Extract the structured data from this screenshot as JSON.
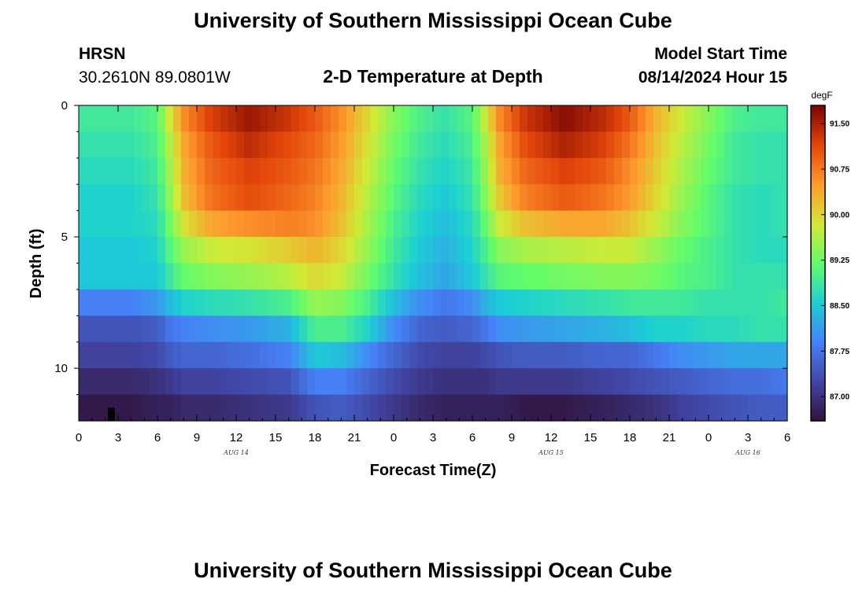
{
  "page": {
    "title_top": "University of Southern Mississippi Ocean Cube",
    "title_bottom": "University of Southern Mississippi Ocean Cube",
    "station_name": "HRSN",
    "station_coords": "30.2610N  89.0801W",
    "model_start_label": "Model Start Time",
    "model_start_value": "08/14/2024 Hour 15"
  },
  "chart_data": {
    "type": "heatmap",
    "title": "2-D Temperature at Depth",
    "xlabel": "Forecast Time(Z)",
    "ylabel": "Depth (ft)",
    "x_range_hours": [
      0,
      54
    ],
    "x_tick_labels": [
      "0",
      "3",
      "6",
      "9",
      "12",
      "15",
      "18",
      "21",
      "0",
      "3",
      "6",
      "9",
      "12",
      "15",
      "18",
      "21",
      "0",
      "3",
      "6"
    ],
    "date_labels": [
      {
        "label": "AUG 14",
        "hour": 12
      },
      {
        "label": "AUG 15",
        "hour": 36
      },
      {
        "label": "AUG 16",
        "hour": 51
      }
    ],
    "y_range_ft": [
      0,
      12
    ],
    "y_tick_labels": [
      "0",
      "5",
      "10"
    ],
    "y_tick_values": [
      0,
      5,
      10
    ],
    "colorbar": {
      "unit": "degF",
      "range": [
        86.6,
        91.8
      ],
      "tick_labels": [
        "91.50",
        "90.75",
        "90.00",
        "89.25",
        "88.50",
        "87.75",
        "87.00"
      ],
      "tick_values": [
        91.5,
        90.75,
        90.0,
        89.25,
        88.5,
        87.75,
        87.0
      ],
      "colors": [
        "#30123b",
        "#4146a4",
        "#4681f7",
        "#1bcfd4",
        "#62fc6b",
        "#d2e935",
        "#fe9b2d",
        "#e4460a",
        "#7a0403"
      ]
    },
    "depth_layers_ft": [
      0.5,
      1.5,
      2.5,
      3.5,
      4.5,
      5.5,
      6.5,
      7.5,
      8.5,
      9.5,
      10.5,
      11.5
    ],
    "profile_hours": [
      0,
      4,
      6,
      7,
      8,
      10,
      13,
      16,
      18,
      20,
      22,
      24,
      26,
      28,
      30,
      31,
      32,
      34,
      37,
      40,
      42,
      44,
      46,
      48,
      50,
      52,
      54
    ],
    "temperature_degF": [
      [
        88.9,
        88.9,
        89.1,
        89.9,
        90.6,
        91.2,
        91.6,
        91.3,
        91.0,
        90.6,
        90.0,
        89.4,
        89.0,
        88.8,
        89.1,
        89.8,
        90.6,
        91.3,
        91.7,
        91.4,
        91.0,
        90.3,
        89.8,
        89.4,
        89.0,
        88.9,
        88.9
      ],
      [
        88.8,
        88.8,
        89.0,
        89.7,
        90.4,
        91.0,
        91.4,
        91.1,
        90.9,
        90.5,
        89.9,
        89.3,
        88.9,
        88.7,
        89.0,
        89.6,
        90.4,
        91.1,
        91.5,
        91.2,
        90.8,
        90.2,
        89.7,
        89.3,
        88.9,
        88.8,
        88.8
      ],
      [
        88.7,
        88.7,
        88.9,
        89.6,
        90.3,
        90.9,
        91.2,
        91.0,
        90.8,
        90.4,
        89.8,
        89.2,
        88.8,
        88.6,
        88.9,
        89.5,
        90.3,
        90.9,
        91.2,
        91.0,
        90.6,
        90.1,
        89.6,
        89.2,
        88.9,
        88.8,
        88.8
      ],
      [
        88.6,
        88.6,
        88.8,
        89.5,
        90.2,
        90.8,
        91.1,
        90.9,
        90.7,
        90.3,
        89.7,
        89.1,
        88.7,
        88.5,
        88.8,
        89.4,
        90.1,
        90.7,
        91.0,
        90.8,
        90.5,
        90.0,
        89.5,
        89.1,
        88.8,
        88.7,
        88.8
      ],
      [
        88.6,
        88.6,
        88.7,
        89.3,
        89.9,
        90.4,
        90.6,
        90.7,
        90.6,
        90.2,
        89.6,
        89.0,
        88.6,
        88.4,
        88.7,
        89.2,
        89.8,
        90.2,
        90.4,
        90.4,
        90.2,
        89.8,
        89.4,
        89.1,
        88.8,
        88.7,
        88.8
      ],
      [
        88.5,
        88.5,
        88.6,
        89.1,
        89.5,
        89.8,
        89.9,
        90.1,
        90.3,
        90.0,
        89.5,
        88.9,
        88.5,
        88.3,
        88.6,
        89.0,
        89.4,
        89.6,
        89.7,
        89.8,
        89.8,
        89.5,
        89.2,
        89.0,
        88.8,
        88.7,
        88.7
      ],
      [
        88.5,
        88.5,
        88.5,
        88.9,
        89.2,
        89.4,
        89.5,
        89.7,
        90.0,
        89.8,
        89.3,
        88.8,
        88.4,
        88.2,
        88.5,
        88.8,
        89.1,
        89.2,
        89.3,
        89.4,
        89.4,
        89.3,
        89.1,
        89.0,
        88.8,
        88.8,
        88.8
      ],
      [
        87.9,
        87.9,
        88.1,
        88.4,
        88.6,
        88.7,
        88.8,
        89.0,
        89.5,
        89.4,
        89.0,
        88.4,
        88.0,
        87.8,
        88.0,
        88.3,
        88.5,
        88.6,
        88.7,
        88.8,
        88.9,
        88.9,
        88.9,
        88.8,
        88.8,
        88.8,
        88.9
      ],
      [
        87.4,
        87.4,
        87.5,
        87.8,
        87.9,
        88.0,
        88.1,
        88.3,
        89.0,
        89.0,
        88.6,
        88.0,
        87.6,
        87.5,
        87.6,
        87.8,
        88.0,
        88.1,
        88.2,
        88.3,
        88.4,
        88.6,
        88.6,
        88.7,
        88.7,
        88.8,
        88.8
      ],
      [
        87.2,
        87.2,
        87.3,
        87.5,
        87.6,
        87.6,
        87.7,
        87.9,
        88.5,
        88.4,
        88.0,
        87.6,
        87.3,
        87.2,
        87.2,
        87.3,
        87.4,
        87.5,
        87.5,
        87.6,
        87.6,
        87.8,
        88.0,
        88.1,
        88.2,
        88.2,
        88.2
      ],
      [
        86.9,
        86.9,
        87.0,
        87.1,
        87.2,
        87.2,
        87.3,
        87.4,
        87.9,
        87.9,
        87.6,
        87.3,
        87.1,
        87.0,
        87.0,
        87.0,
        87.1,
        87.1,
        87.1,
        87.2,
        87.3,
        87.4,
        87.5,
        87.6,
        87.7,
        87.7,
        87.8
      ],
      [
        86.7,
        86.7,
        86.8,
        86.8,
        86.9,
        86.9,
        87.0,
        87.1,
        87.4,
        87.5,
        87.3,
        87.1,
        86.9,
        86.8,
        86.8,
        86.8,
        86.8,
        86.7,
        86.7,
        86.8,
        86.9,
        87.0,
        87.2,
        87.3,
        87.4,
        87.5,
        87.5
      ]
    ]
  }
}
